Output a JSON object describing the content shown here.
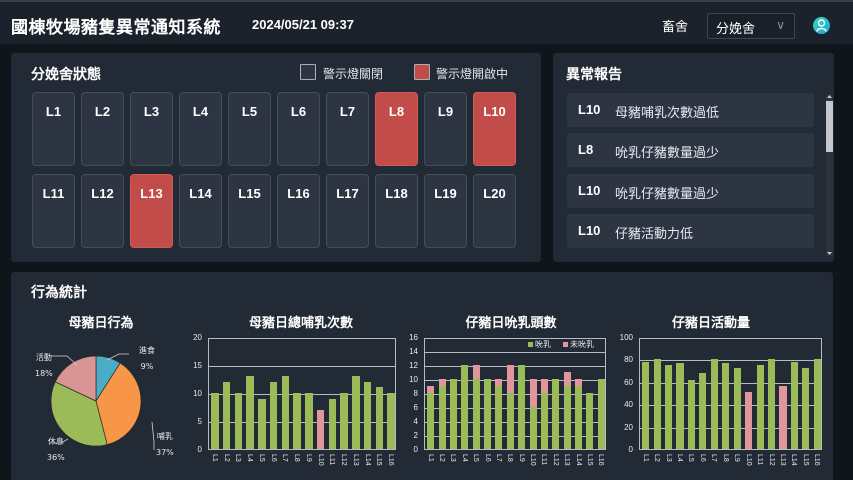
{
  "header": {
    "title": "國棟牧場豬隻異常通知系統",
    "datetime": "2024/05/21 09:37",
    "barn_label": "畜舍",
    "barn_selected": "分娩舍",
    "chevron": "∨"
  },
  "status_panel": {
    "title": "分娩舍狀態",
    "legend_off": "警示燈關閉",
    "legend_on": "警示燈開啟中",
    "colors": {
      "off": "#2d3543",
      "on": "#c24c4a"
    },
    "pens": [
      {
        "id": "L1",
        "alert": false
      },
      {
        "id": "L2",
        "alert": false
      },
      {
        "id": "L3",
        "alert": false
      },
      {
        "id": "L4",
        "alert": false
      },
      {
        "id": "L5",
        "alert": false
      },
      {
        "id": "L6",
        "alert": false
      },
      {
        "id": "L7",
        "alert": false
      },
      {
        "id": "L8",
        "alert": true
      },
      {
        "id": "L9",
        "alert": false
      },
      {
        "id": "L10",
        "alert": true
      },
      {
        "id": "L11",
        "alert": false
      },
      {
        "id": "L12",
        "alert": false
      },
      {
        "id": "L13",
        "alert": true
      },
      {
        "id": "L14",
        "alert": false
      },
      {
        "id": "L15",
        "alert": false
      },
      {
        "id": "L16",
        "alert": false
      },
      {
        "id": "L17",
        "alert": false
      },
      {
        "id": "L18",
        "alert": false
      },
      {
        "id": "L19",
        "alert": false
      },
      {
        "id": "L20",
        "alert": false
      }
    ]
  },
  "report_panel": {
    "title": "異常報告",
    "items": [
      {
        "lot": "L10",
        "message": "母豬哺乳次數過低"
      },
      {
        "lot": "L8",
        "message": "吮乳仔豬數量過少"
      },
      {
        "lot": "L10",
        "message": "吮乳仔豬數量過少"
      },
      {
        "lot": "L10",
        "message": "仔豬活動力低"
      }
    ]
  },
  "stats_panel": {
    "title": "行為統計"
  },
  "chart_data": [
    {
      "type": "pie",
      "title": "母豬日行為",
      "labels": [
        "進食",
        "哺乳",
        "休息",
        "活動"
      ],
      "values": [
        9,
        37,
        36,
        18
      ],
      "value_labels": [
        "9%",
        "37%",
        "36%",
        "18%"
      ],
      "colors": [
        "#4bacc6",
        "#f79646",
        "#9bbb59",
        "#d99594"
      ]
    },
    {
      "type": "bar",
      "title": "母豬日總哺乳次數",
      "categories": [
        "L1",
        "L2",
        "L3",
        "L4",
        "L5",
        "L6",
        "L7",
        "L8",
        "L9",
        "L10",
        "L11",
        "L12",
        "L13",
        "L14",
        "L15",
        "L16"
      ],
      "values": [
        10,
        12,
        10,
        13,
        9,
        12,
        13,
        10,
        10,
        7,
        9,
        10,
        13,
        12,
        11,
        10
      ],
      "highlight": [
        false,
        false,
        false,
        false,
        false,
        false,
        false,
        false,
        false,
        true,
        false,
        false,
        false,
        false,
        false,
        false
      ],
      "ylim": [
        0,
        20
      ],
      "yticks": [
        0,
        5,
        10,
        15,
        20
      ],
      "grid": true
    },
    {
      "type": "bar",
      "stacked": true,
      "title": "仔豬日吮乳頭數",
      "categories": [
        "L1",
        "L2",
        "L3",
        "L4",
        "L5",
        "L6",
        "L7",
        "L8",
        "L9",
        "L10",
        "L11",
        "L12",
        "L13",
        "L14",
        "L15",
        "L16"
      ],
      "series": [
        {
          "name": "吮乳",
          "color": "#9bbb59",
          "values": [
            8,
            9,
            10,
            12,
            10,
            10,
            9,
            8,
            12,
            6,
            8,
            10,
            9,
            9,
            8,
            10
          ]
        },
        {
          "name": "未吮乳",
          "color": "#e0969a",
          "values": [
            1,
            1,
            0,
            0,
            2,
            0,
            1,
            4,
            0,
            4,
            2,
            0,
            2,
            1,
            0,
            0
          ]
        }
      ],
      "ylim": [
        0,
        16
      ],
      "yticks": [
        0,
        2,
        4,
        6,
        8,
        10,
        12,
        14,
        16
      ],
      "legend_position": "top-right",
      "grid": true
    },
    {
      "type": "bar",
      "title": "仔豬日活動量",
      "categories": [
        "L1",
        "L2",
        "L3",
        "L4",
        "L5",
        "L6",
        "L7",
        "L8",
        "L9",
        "L10",
        "L11",
        "L12",
        "L13",
        "L14",
        "L15",
        "L16"
      ],
      "values": [
        78,
        80,
        75,
        77,
        62,
        68,
        80,
        77,
        72,
        51,
        75,
        80,
        56,
        78,
        72,
        80
      ],
      "highlight": [
        false,
        false,
        false,
        false,
        false,
        false,
        false,
        false,
        false,
        true,
        false,
        false,
        true,
        false,
        false,
        false
      ],
      "ylim": [
        0,
        100
      ],
      "yticks": [
        0,
        20,
        40,
        60,
        80,
        100
      ],
      "grid": true
    }
  ]
}
